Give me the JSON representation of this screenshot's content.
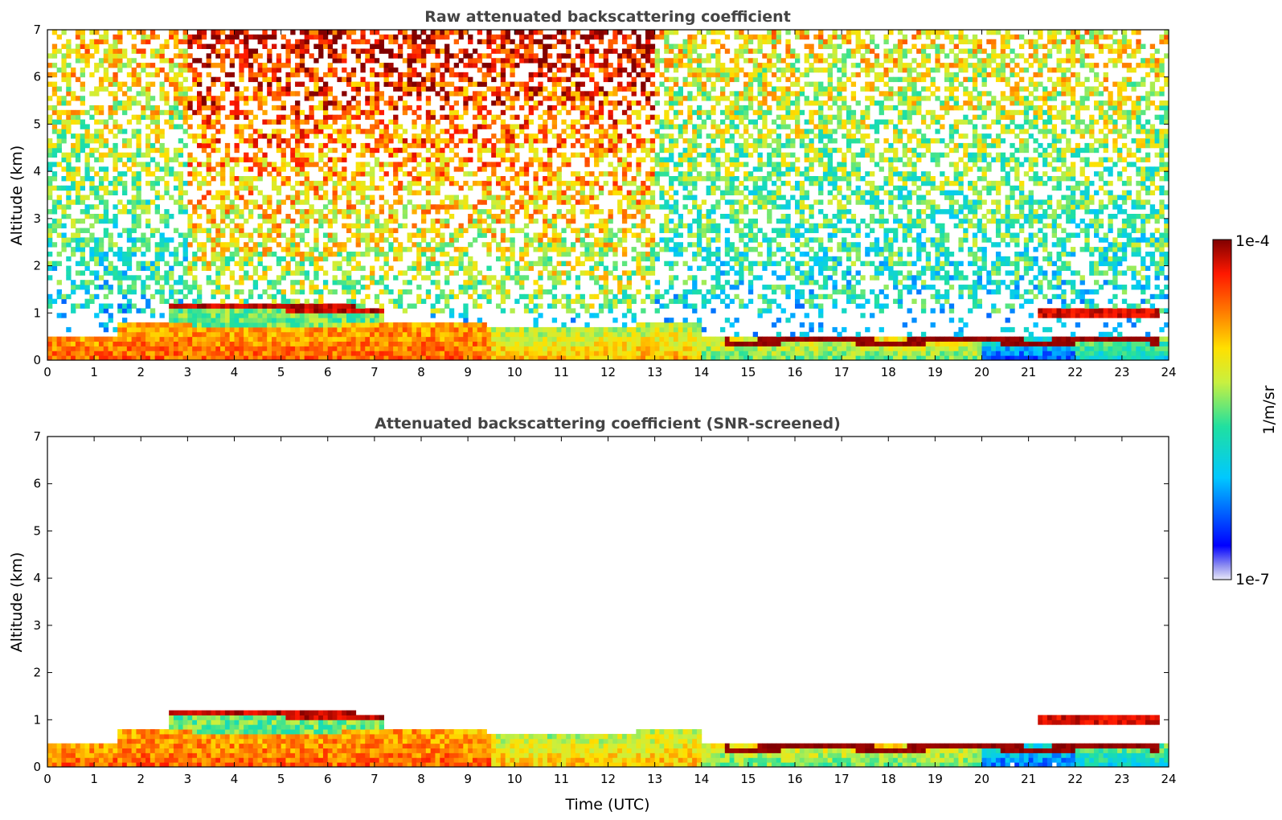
{
  "chart_data": [
    {
      "type": "heatmap",
      "title": "Raw attenuated backscattering coefficient",
      "xlabel": "",
      "ylabel": "Altitude (km)",
      "xlim": [
        0,
        24
      ],
      "ylim": [
        0,
        7
      ],
      "xticks": [
        "0",
        "1",
        "2",
        "3",
        "4",
        "5",
        "6",
        "7",
        "8",
        "9",
        "10",
        "11",
        "12",
        "13",
        "14",
        "15",
        "16",
        "17",
        "18",
        "19",
        "20",
        "21",
        "22",
        "23",
        "24"
      ],
      "yticks": [
        "0",
        "1",
        "2",
        "3",
        "4",
        "5",
        "6",
        "7"
      ],
      "features": [
        {
          "kind": "surface_aerosol_layer",
          "x_range": [
            0,
            24
          ],
          "top_km_start": 0.5,
          "top_km_end": 0.5
        },
        {
          "kind": "elevated_layer",
          "x_range": [
            2.6,
            7.2
          ],
          "altitude_km": 1.15
        },
        {
          "kind": "elevated_layer",
          "x_range": [
            14.5,
            23.8
          ],
          "altitude_km": 0.45
        },
        {
          "kind": "elevated_layer",
          "x_range": [
            21.2,
            23.8
          ],
          "altitude_km": 1.0
        },
        {
          "kind": "background_noise",
          "x_range": [
            0,
            24
          ],
          "altitude_range_km": [
            1,
            7
          ]
        }
      ]
    },
    {
      "type": "heatmap",
      "title": "Attenuated backscattering coefficient (SNR-screened)",
      "xlabel": "Time (UTC)",
      "ylabel": "Altitude (km)",
      "xlim": [
        0,
        24
      ],
      "ylim": [
        0,
        7
      ],
      "xticks": [
        "0",
        "1",
        "2",
        "3",
        "4",
        "5",
        "6",
        "7",
        "8",
        "9",
        "10",
        "11",
        "12",
        "13",
        "14",
        "15",
        "16",
        "17",
        "18",
        "19",
        "20",
        "21",
        "22",
        "23",
        "24"
      ],
      "yticks": [
        "0",
        "1",
        "2",
        "3",
        "4",
        "5",
        "6",
        "7"
      ],
      "features": [
        {
          "kind": "surface_aerosol_layer",
          "x_range": [
            0,
            24
          ]
        },
        {
          "kind": "elevated_layer",
          "x_range": [
            2.6,
            7.2
          ],
          "altitude_km": 1.15
        },
        {
          "kind": "elevated_layer",
          "x_range": [
            14.5,
            23.8
          ],
          "altitude_km": 0.45
        },
        {
          "kind": "elevated_layer",
          "x_range": [
            21.2,
            23.8
          ],
          "altitude_km": 1.0
        }
      ]
    }
  ],
  "colorbar": {
    "label": "1/m/sr",
    "max_label": "1e-4",
    "min_label": "1e-7",
    "scale": "log",
    "colormap": "jet"
  }
}
